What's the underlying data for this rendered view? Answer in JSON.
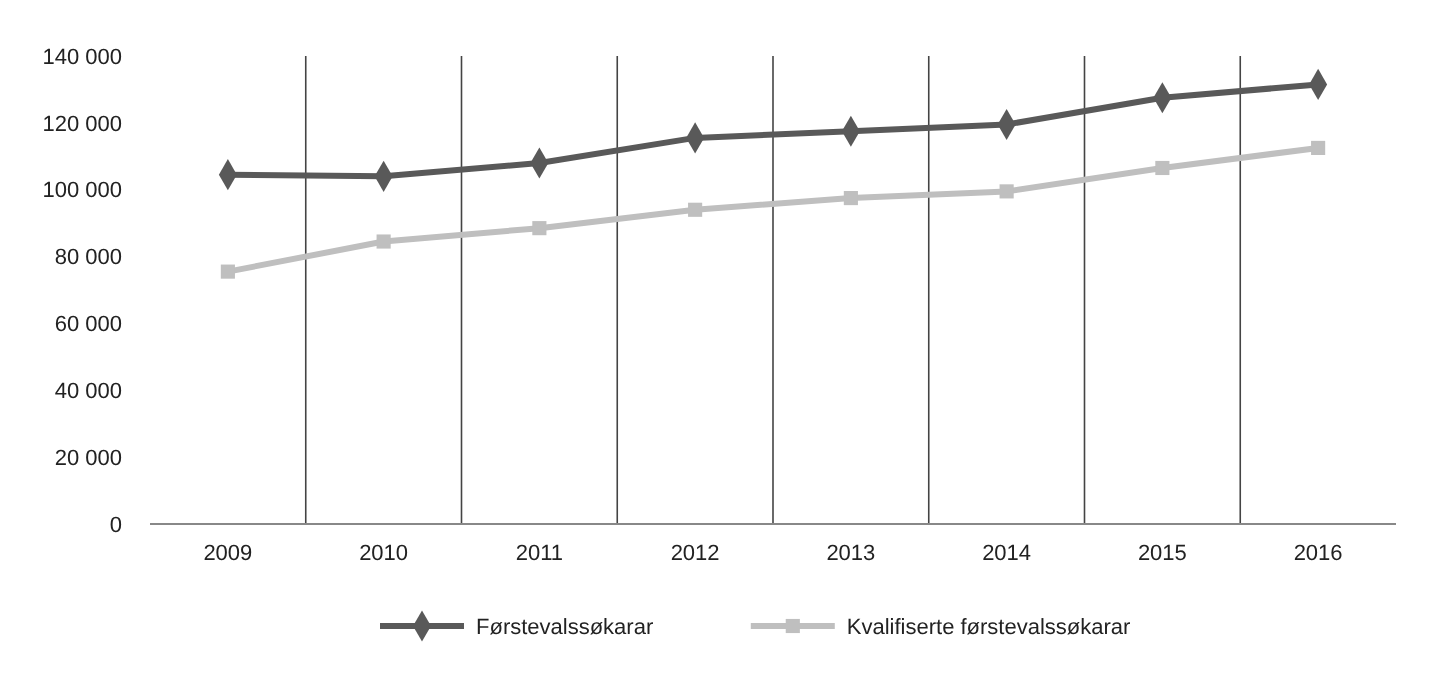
{
  "chart_data": {
    "type": "line",
    "categories": [
      "2009",
      "2010",
      "2011",
      "2012",
      "2013",
      "2014",
      "2015",
      "2016"
    ],
    "series": [
      {
        "name": "Førstevalssøkarar",
        "color": "#595959",
        "marker": "diamond",
        "values": [
          104500,
          104000,
          108000,
          115500,
          117500,
          119500,
          127500,
          131500
        ]
      },
      {
        "name": "Kvalifiserte førstevalssøkarar",
        "color": "#bfbfbf",
        "marker": "square",
        "values": [
          75500,
          84500,
          88500,
          94000,
          97500,
          99500,
          106500,
          112500
        ]
      }
    ],
    "ylim": [
      0,
      140000
    ],
    "yticks": [
      {
        "value": 0,
        "label": "0"
      },
      {
        "value": 20000,
        "label": "20 000"
      },
      {
        "value": 40000,
        "label": "40 000"
      },
      {
        "value": 60000,
        "label": "60 000"
      },
      {
        "value": 80000,
        "label": "80 000"
      },
      {
        "value": 100000,
        "label": "100 000"
      },
      {
        "value": 120000,
        "label": "120 000"
      },
      {
        "value": 140000,
        "label": "140 000"
      }
    ],
    "grid": "x",
    "legend": "bottom",
    "line_style": "solid"
  }
}
